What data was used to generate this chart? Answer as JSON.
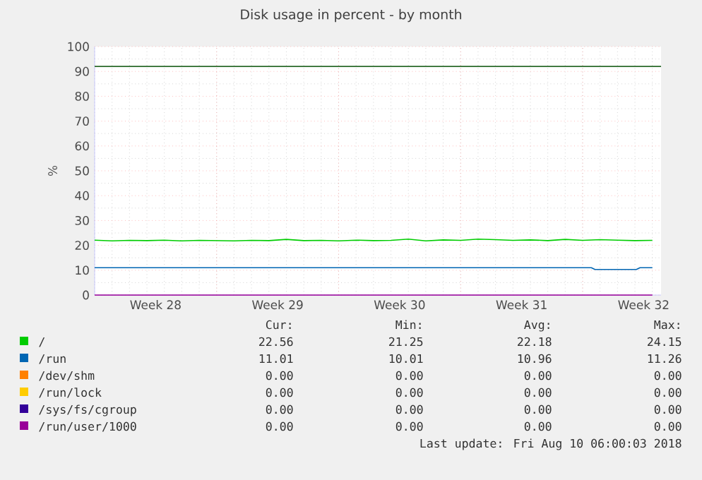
{
  "chart_data": {
    "type": "line",
    "title": "Disk usage in percent - by month",
    "ylabel": "%",
    "xlim": [
      "2018-07-09",
      "2018-08-10T12:00"
    ],
    "xticks": [
      {
        "value": "2018-07-12T12:00",
        "label": "Week 28"
      },
      {
        "value": "2018-07-16",
        "label": null
      },
      {
        "value": "2018-07-19T12:00",
        "label": "Week 29"
      },
      {
        "value": "2018-07-23",
        "label": null
      },
      {
        "value": "2018-07-26T12:00",
        "label": "Week 30"
      },
      {
        "value": "2018-07-30",
        "label": null
      },
      {
        "value": "2018-08-02T12:00",
        "label": "Week 31"
      },
      {
        "value": "2018-08-06",
        "label": null
      },
      {
        "value": "2018-08-09T12:00",
        "label": "Week 32"
      }
    ],
    "ylim": [
      0,
      100
    ],
    "yticks": [
      0,
      10,
      20,
      30,
      40,
      50,
      60,
      70,
      80,
      90,
      100
    ],
    "grid": true,
    "legend": "bottom",
    "marker": "none",
    "line_style": "solid",
    "ref_lines": [
      {
        "axis": "y",
        "value": 92,
        "color": "#2a6a2a"
      }
    ],
    "series": [
      {
        "name": "/",
        "color": "#00cc00",
        "x": [
          "2018-07-09",
          "2018-07-10",
          "2018-07-11",
          "2018-07-12",
          "2018-07-13",
          "2018-07-14",
          "2018-07-15",
          "2018-07-16",
          "2018-07-17",
          "2018-07-18",
          "2018-07-19",
          "2018-07-20",
          "2018-07-21",
          "2018-07-22",
          "2018-07-23",
          "2018-07-24",
          "2018-07-25",
          "2018-07-26",
          "2018-07-27",
          "2018-07-28",
          "2018-07-29",
          "2018-07-30",
          "2018-07-31",
          "2018-08-01",
          "2018-08-02",
          "2018-08-03",
          "2018-08-04",
          "2018-08-05",
          "2018-08-06",
          "2018-08-07",
          "2018-08-08",
          "2018-08-09",
          "2018-08-10"
        ],
        "values": [
          22.1,
          21.8,
          22.0,
          21.9,
          22.1,
          21.8,
          22.0,
          21.9,
          21.8,
          22.0,
          21.9,
          22.4,
          21.9,
          22.0,
          21.8,
          22.1,
          21.9,
          22.0,
          22.5,
          21.8,
          22.2,
          22.0,
          22.5,
          22.3,
          22.0,
          22.2,
          21.9,
          22.4,
          22.0,
          22.3,
          22.1,
          21.9,
          22.0
        ]
      },
      {
        "name": "/run",
        "color": "#0066b3",
        "x": [
          "2018-07-09",
          "2018-08-06T12:00",
          "2018-08-06T17:00",
          "2018-08-09T02:00",
          "2018-08-09T07:00",
          "2018-08-10"
        ],
        "values": [
          11.0,
          11.0,
          10.3,
          10.3,
          11.0,
          11.0
        ]
      },
      {
        "name": "/dev/shm",
        "color": "#ff8000"
      },
      {
        "name": "/run/lock",
        "color": "#ffcc00"
      },
      {
        "name": "/sys/fs/cgroup",
        "color": "#330099"
      },
      {
        "name": "/run/user/1000",
        "color": "#990099",
        "x": [
          "2018-07-09",
          "2018-08-10"
        ],
        "values": [
          0,
          0
        ]
      }
    ],
    "annotations": [
      "Cur:",
      "Min:",
      "Avg:",
      "Max:",
      "22.56",
      "21.25",
      "22.18",
      "24.15",
      "11.01",
      "10.01",
      "10.96",
      "11.26",
      "0.00",
      "0.00",
      "0.00",
      "0.00",
      "0.00",
      "0.00",
      "0.00",
      "0.00",
      "0.00",
      "0.00",
      "0.00",
      "0.00",
      "0.00",
      "0.00",
      "0.00",
      "0.00",
      "Last update: Fri Aug 10 06:00:03 2018"
    ]
  }
}
